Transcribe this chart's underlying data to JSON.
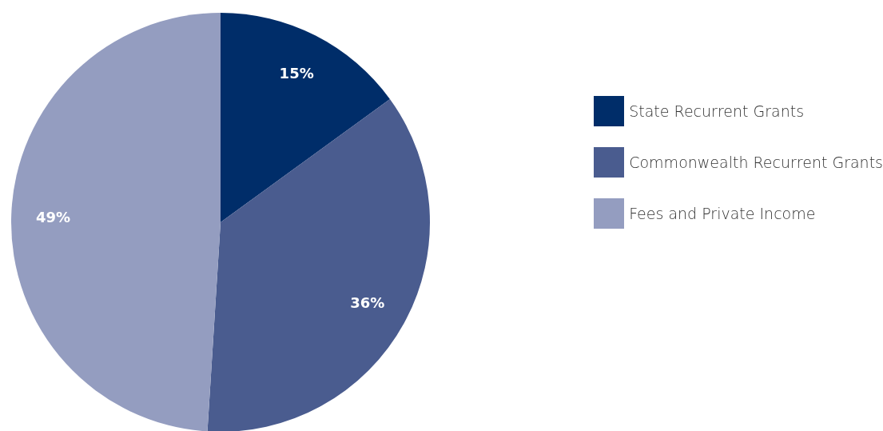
{
  "chart_data": {
    "type": "pie",
    "categories": [
      "State Recurrent Grants",
      "Commonwealth Recurrent Grants",
      "Fees and Private Income"
    ],
    "values": [
      15,
      36,
      49
    ],
    "colors": [
      "#002d69",
      "#4a5c8f",
      "#949dc0"
    ],
    "value_labels": [
      "15%",
      "36%",
      "49%"
    ],
    "legend": "right"
  }
}
